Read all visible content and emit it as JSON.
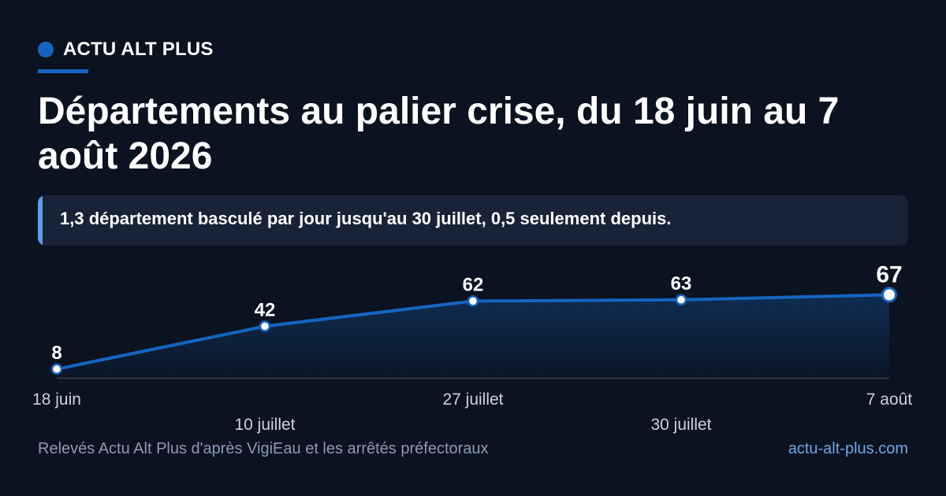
{
  "brand": {
    "name": "ACTU ALT PLUS",
    "site": "actu-alt-plus.com"
  },
  "headline": "Départements au palier crise, du 18 juin au 7 août 2026",
  "callout": "1,3 département basculé par jour jusqu'au 30 juillet, 0,5 seulement depuis.",
  "source": "Relevés Actu Alt Plus d'après VigiEau et les arrêtés préfectoraux",
  "colors": {
    "background": "#0b1220",
    "accent": "#1565c0",
    "callout_bg": "#182337",
    "callout_bar": "#5c9ee8",
    "line": "#1565c0",
    "axis_text": "#c9d3e2",
    "source_text": "#8a9bb4",
    "site_text": "#6fa6e8"
  },
  "chart_data": {
    "type": "area",
    "x": [
      "18 juin",
      "10 juillet",
      "27 juillet",
      "30 juillet",
      "7 août"
    ],
    "values": [
      8,
      42,
      62,
      63,
      67
    ],
    "title": "",
    "xlabel": "",
    "ylabel": "",
    "grid": false,
    "legend": "none",
    "highlight_last": true
  }
}
